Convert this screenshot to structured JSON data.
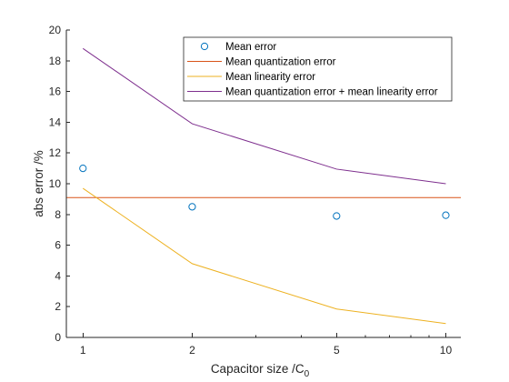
{
  "chart_data": {
    "type": "line",
    "xscale": "log",
    "xlabel": "Capacitor size /C",
    "xlabel_subscript": "0",
    "ylabel": "abs error /%",
    "xlim": [
      0.9,
      11
    ],
    "ylim": [
      0,
      20
    ],
    "xticks": [
      1,
      2,
      5,
      10
    ],
    "xtick_labels": [
      "1",
      "2",
      "5",
      "10"
    ],
    "yticks": [
      0,
      2,
      4,
      6,
      8,
      10,
      12,
      14,
      16,
      18,
      20
    ],
    "ytick_labels": [
      "0",
      "2",
      "4",
      "6",
      "8",
      "10",
      "12",
      "14",
      "16",
      "18",
      "20"
    ],
    "grid": false,
    "legend_position": "top-right",
    "series": [
      {
        "name": "Mean error",
        "style": "marker",
        "color": "#0072BD",
        "x": [
          1,
          2,
          5,
          10
        ],
        "y": [
          11.0,
          8.5,
          7.9,
          7.95
        ]
      },
      {
        "name": "Mean quantization error",
        "style": "line",
        "color": "#D95319",
        "x": [
          0.9,
          11
        ],
        "y": [
          9.1,
          9.1
        ]
      },
      {
        "name": "Mean linearity error",
        "style": "line",
        "color": "#EDB120",
        "x": [
          1,
          2,
          5,
          10
        ],
        "y": [
          9.7,
          4.8,
          1.85,
          0.9
        ]
      },
      {
        "name": "Mean quantization error + mean linearity error",
        "style": "line",
        "color": "#7E2F8E",
        "x": [
          1,
          2,
          5,
          10
        ],
        "y": [
          18.8,
          13.9,
          10.95,
          10.0
        ]
      }
    ]
  }
}
